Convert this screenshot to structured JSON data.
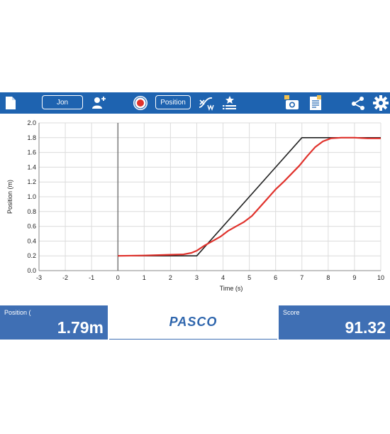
{
  "toolbar": {
    "user_button_label": "Jon",
    "measurement_button_label": "Position",
    "icons": [
      "document-icon",
      "add-user-icon",
      "record-icon",
      "curve-fit-icon",
      "favorites-list-icon",
      "camera-icon",
      "notebook-icon",
      "share-icon",
      "gear-icon"
    ],
    "record_color": "#e0322c",
    "accent_color": "#1e63b0"
  },
  "chart_data": {
    "type": "line",
    "xlabel": "Time (s)",
    "ylabel": "Position (m)",
    "xlim": [
      -3,
      10
    ],
    "ylim": [
      0,
      2.0
    ],
    "x_ticks": [
      "-3",
      "-2",
      "-1",
      "0",
      "1",
      "2",
      "3",
      "4",
      "5",
      "6",
      "7",
      "8",
      "9",
      "10"
    ],
    "y_ticks": [
      "0.0",
      "0.2",
      "0.4",
      "0.6",
      "0.8",
      "1.0",
      "1.2",
      "1.4",
      "1.6",
      "1.8",
      "2.0"
    ],
    "grid": true,
    "series": [
      {
        "color": "#222222",
        "points": [
          [
            0,
            0.2
          ],
          [
            3,
            0.2
          ],
          [
            7,
            1.8
          ],
          [
            10,
            1.8
          ]
        ]
      },
      {
        "color": "#e0322c",
        "points": [
          [
            0,
            0.2
          ],
          [
            1,
            0.205
          ],
          [
            2,
            0.215
          ],
          [
            2.5,
            0.22
          ],
          [
            2.8,
            0.24
          ],
          [
            3.0,
            0.27
          ],
          [
            3.3,
            0.34
          ],
          [
            3.6,
            0.4
          ],
          [
            3.9,
            0.46
          ],
          [
            4.2,
            0.54
          ],
          [
            4.5,
            0.6
          ],
          [
            4.8,
            0.66
          ],
          [
            5.1,
            0.74
          ],
          [
            5.4,
            0.86
          ],
          [
            5.7,
            0.98
          ],
          [
            6.0,
            1.1
          ],
          [
            6.3,
            1.2
          ],
          [
            6.6,
            1.31
          ],
          [
            6.9,
            1.42
          ],
          [
            7.2,
            1.55
          ],
          [
            7.5,
            1.67
          ],
          [
            7.8,
            1.75
          ],
          [
            8.1,
            1.79
          ],
          [
            8.5,
            1.8
          ],
          [
            9.0,
            1.8
          ],
          [
            9.5,
            1.79
          ],
          [
            10,
            1.79
          ]
        ]
      }
    ]
  },
  "footer": {
    "position_label": "Position (",
    "position_value": "1.79m",
    "logo_text": "PASCO",
    "score_label": "Score",
    "score_value": "91.32",
    "panel_color": "#3f6fb4"
  }
}
